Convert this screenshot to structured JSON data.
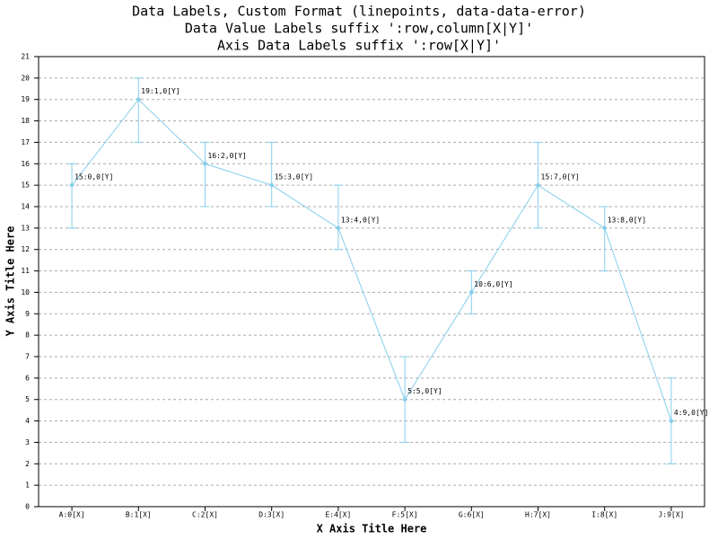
{
  "chart_data": {
    "type": "linepoints-error",
    "title": "Data Labels, Custom Format (linepoints, data-data-error)",
    "subtitles": [
      "Data Value Labels suffix ':row,column[X|Y]'",
      "Axis Data Labels suffix ':row[X|Y]'"
    ],
    "x_label": "X Axis Title Here",
    "y_label": "Y Axis Title Here",
    "categories": [
      "A:0[X]",
      "B:1[X]",
      "C:2[X]",
      "D:3[X]",
      "E:4[X]",
      "F:5[X]",
      "G:6[X]",
      "H:7[X]",
      "I:8[X]",
      "J:9[X]"
    ],
    "series": [
      {
        "color": "#87ceeb",
        "values": [
          15,
          19,
          16,
          15,
          13,
          5,
          10,
          15,
          13,
          4
        ],
        "value_labels": [
          "15:0,0[Y]",
          "19:1,0[Y]",
          "16:2,0[Y]",
          "15:3,0[Y]",
          "13:4,0[Y]",
          "5:5,0[Y]",
          "10:6,0[Y]",
          "15:7,0[Y]",
          "13:8,0[Y]",
          "4:9,0[Y]"
        ],
        "errors_plus": [
          1,
          1,
          1,
          2,
          2,
          2,
          1,
          2,
          1,
          2
        ],
        "errors_minus": [
          2,
          2,
          2,
          1,
          1,
          2,
          1,
          2,
          2,
          2
        ]
      }
    ],
    "ylim": [
      0,
      21
    ],
    "yticks": [
      0,
      1,
      2,
      3,
      4,
      5,
      6,
      7,
      8,
      9,
      10,
      11,
      12,
      13,
      14,
      15,
      16,
      17,
      18,
      19,
      20,
      21
    ],
    "grid": true
  }
}
